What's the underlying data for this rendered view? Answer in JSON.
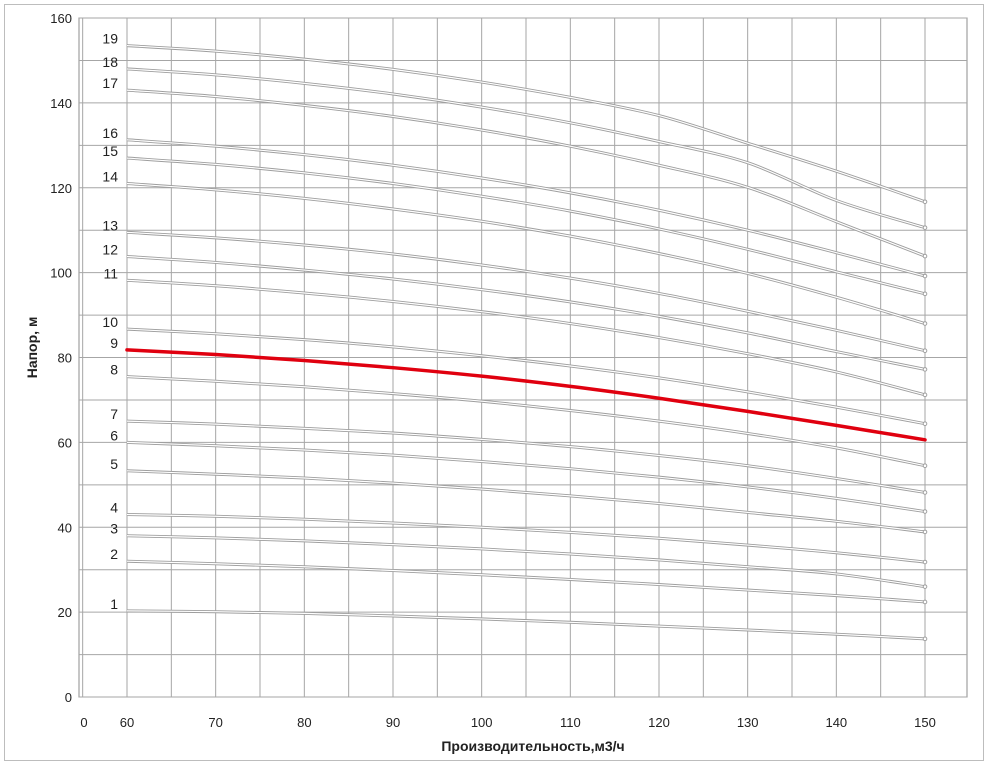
{
  "chart_data": {
    "type": "line",
    "title": "",
    "xlabel": "Производительность,м3/ч",
    "ylabel": "Напор, м",
    "xlim": [
      0,
      150
    ],
    "ylim": [
      0,
      160
    ],
    "grid": true,
    "legend": "none",
    "x_tick_labels": [
      "0",
      "60",
      "70",
      "80",
      "90",
      "100",
      "110",
      "120",
      "130",
      "140",
      "150"
    ],
    "y_tick_labels": [
      "0",
      "20",
      "40",
      "60",
      "80",
      "100",
      "120",
      "140",
      "160"
    ],
    "highlight_series": "9",
    "colors": {
      "curve": "#9e9e9e",
      "highlight": "#e0000f",
      "grid": "#a6a6a6"
    },
    "x": [
      60,
      70,
      80,
      90,
      100,
      110,
      120,
      130,
      140,
      150
    ],
    "series": [
      {
        "name": "1",
        "values": [
          20.3,
          20.1,
          19.7,
          19.1,
          18.4,
          17.6,
          16.7,
          15.8,
          14.8,
          13.7
        ]
      },
      {
        "name": "2",
        "values": [
          32.0,
          31.4,
          30.7,
          29.8,
          28.8,
          27.7,
          26.5,
          25.2,
          23.9,
          22.4
        ]
      },
      {
        "name": "3",
        "values": [
          38.0,
          37.5,
          36.8,
          35.9,
          34.9,
          33.7,
          32.3,
          30.7,
          29.0,
          26.0
        ]
      },
      {
        "name": "4",
        "values": [
          43.0,
          42.6,
          41.9,
          41.0,
          40.0,
          38.8,
          37.4,
          35.8,
          34.0,
          31.8
        ]
      },
      {
        "name": "5",
        "values": [
          53.3,
          52.5,
          51.6,
          50.4,
          49.0,
          47.4,
          45.6,
          43.5,
          41.4,
          38.9
        ]
      },
      {
        "name": "6",
        "values": [
          60.0,
          59.2,
          58.2,
          57.0,
          55.5,
          53.8,
          51.8,
          49.5,
          46.8,
          43.7
        ]
      },
      {
        "name": "7",
        "values": [
          65.0,
          64.3,
          63.3,
          62.2,
          60.7,
          59.0,
          56.9,
          54.5,
          51.5,
          48.2
        ]
      },
      {
        "name": "8",
        "values": [
          75.5,
          74.4,
          73.1,
          71.5,
          69.7,
          67.5,
          65.0,
          62.1,
          58.7,
          54.5
        ]
      },
      {
        "name": "9",
        "values": [
          81.8,
          80.7,
          79.3,
          77.6,
          75.6,
          73.2,
          70.4,
          67.3,
          64.0,
          60.6
        ]
      },
      {
        "name": "10",
        "values": [
          86.7,
          85.6,
          84.2,
          82.5,
          80.4,
          78.0,
          75.2,
          71.9,
          68.3,
          64.4
        ]
      },
      {
        "name": "11",
        "values": [
          98.2,
          96.9,
          95.2,
          93.2,
          90.8,
          88.0,
          84.7,
          80.9,
          76.6,
          71.2
        ]
      },
      {
        "name": "12",
        "values": [
          103.8,
          102.4,
          100.6,
          98.5,
          96.0,
          93.1,
          89.7,
          85.8,
          81.4,
          77.2
        ]
      },
      {
        "name": "13",
        "values": [
          109.5,
          108.2,
          106.5,
          104.4,
          101.8,
          98.7,
          95.1,
          90.9,
          86.4,
          81.6
        ]
      },
      {
        "name": "14",
        "values": [
          121.0,
          119.5,
          117.5,
          115.0,
          112.1,
          108.6,
          104.5,
          99.8,
          94.2,
          88.0
        ]
      },
      {
        "name": "15",
        "values": [
          127.0,
          125.5,
          123.5,
          121.0,
          118.0,
          114.5,
          110.3,
          105.5,
          100.2,
          95.0
        ]
      },
      {
        "name": "16",
        "values": [
          131.3,
          129.8,
          127.8,
          125.3,
          122.3,
          118.8,
          114.7,
          110.0,
          104.7,
          99.2
        ]
      },
      {
        "name": "17",
        "values": [
          143.0,
          141.5,
          139.4,
          136.8,
          133.6,
          129.8,
          125.3,
          120.1,
          112.0,
          103.9
        ]
      },
      {
        "name": "18",
        "values": [
          148.0,
          146.6,
          144.6,
          142.1,
          139.0,
          135.3,
          130.9,
          125.9,
          117.0,
          110.6
        ]
      },
      {
        "name": "19",
        "values": [
          153.5,
          152.2,
          150.3,
          147.9,
          144.9,
          141.3,
          137.0,
          130.5,
          123.9,
          116.7
        ]
      }
    ]
  }
}
